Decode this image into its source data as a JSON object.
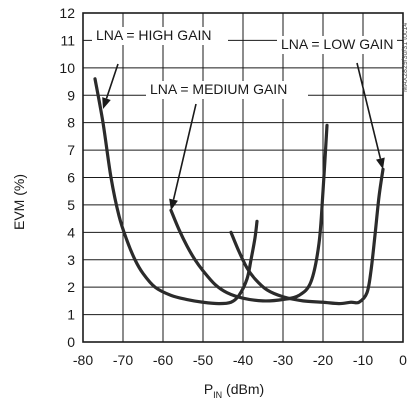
{
  "chart_data": {
    "type": "line",
    "title": "",
    "xlabel": "P",
    "xlabel_sub": "IN",
    "xlabel_unit": " (dBm)",
    "ylabel": "EVM (%)",
    "xlim": [
      -80,
      0
    ],
    "ylim": [
      0,
      12
    ],
    "x_ticks": [
      -80,
      -70,
      -60,
      -50,
      -40,
      -30,
      -20,
      -10,
      0
    ],
    "y_ticks": [
      0,
      1,
      2,
      3,
      4,
      5,
      6,
      7,
      8,
      9,
      10,
      11,
      12
    ],
    "grid": true,
    "series": [
      {
        "name": "LNA = HIGH GAIN",
        "points": [
          [
            -77,
            9.6
          ],
          [
            -75,
            8.0
          ],
          [
            -73,
            6.0
          ],
          [
            -71,
            4.6
          ],
          [
            -69,
            3.7
          ],
          [
            -67,
            3.0
          ],
          [
            -65,
            2.5
          ],
          [
            -62,
            2.0
          ],
          [
            -58,
            1.7
          ],
          [
            -54,
            1.55
          ],
          [
            -50,
            1.45
          ],
          [
            -46,
            1.4
          ],
          [
            -43,
            1.45
          ],
          [
            -41,
            1.7
          ],
          [
            -39,
            2.3
          ],
          [
            -38,
            3.0
          ],
          [
            -37,
            3.8
          ],
          [
            -36.5,
            4.4
          ]
        ]
      },
      {
        "name": "LNA = MEDIUM GAIN",
        "points": [
          [
            -58,
            4.8
          ],
          [
            -56,
            4.1
          ],
          [
            -54,
            3.5
          ],
          [
            -52,
            3.0
          ],
          [
            -50,
            2.6
          ],
          [
            -47,
            2.1
          ],
          [
            -44,
            1.8
          ],
          [
            -40,
            1.6
          ],
          [
            -35,
            1.5
          ],
          [
            -30,
            1.55
          ],
          [
            -26,
            1.7
          ],
          [
            -23,
            2.2
          ],
          [
            -21,
            3.6
          ],
          [
            -20,
            5.5
          ],
          [
            -19,
            7.9
          ]
        ]
      },
      {
        "name": "LNA = LOW GAIN",
        "points": [
          [
            -43,
            4.0
          ],
          [
            -41,
            3.3
          ],
          [
            -39,
            2.7
          ],
          [
            -37,
            2.3
          ],
          [
            -34,
            1.9
          ],
          [
            -30,
            1.65
          ],
          [
            -25,
            1.5
          ],
          [
            -20,
            1.45
          ],
          [
            -16,
            1.4
          ],
          [
            -13,
            1.45
          ],
          [
            -11,
            1.45
          ],
          [
            -9,
            1.8
          ],
          [
            -8,
            2.6
          ],
          [
            -7,
            3.9
          ],
          [
            -6,
            5.3
          ],
          [
            -5,
            6.3
          ]
        ]
      }
    ],
    "annotations": [
      {
        "text": "LNA = HIGH GAIN",
        "target": [
          -75,
          8.5
        ]
      },
      {
        "text": "LNA = MEDIUM GAIN",
        "target": [
          -58,
          4.8
        ]
      },
      {
        "text": "LNA = LOW GAIN",
        "target": [
          -5,
          6.3
        ]
      }
    ],
    "side_note": "MAX2829/30/31 toc14"
  }
}
